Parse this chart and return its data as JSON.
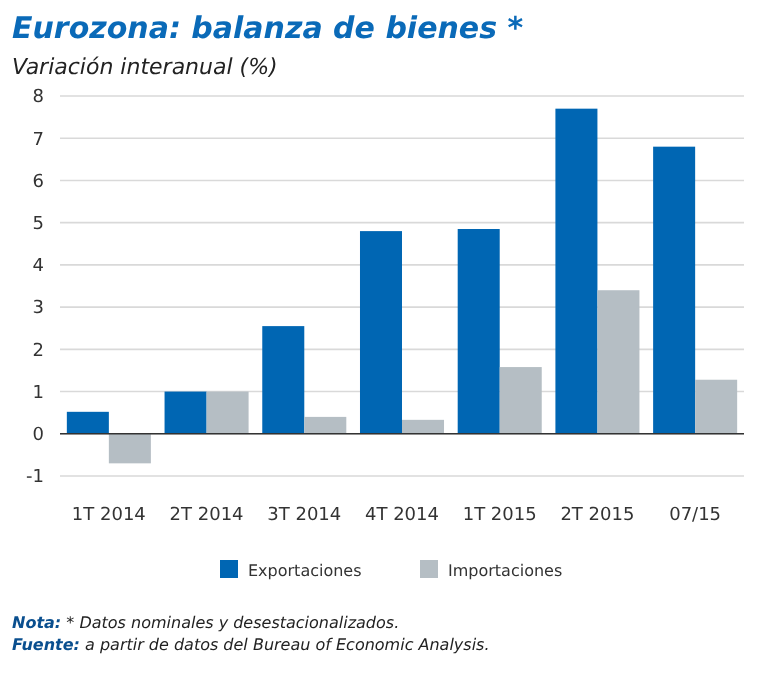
{
  "chart_data": {
    "type": "bar",
    "title": "Eurozona: balanza de bienes *",
    "subtitle": "Variación interanual (%)",
    "categories": [
      "1T 2014",
      "2T 2014",
      "3T 2014",
      "4T 2014",
      "1T 2015",
      "2T 2015",
      "07/15"
    ],
    "series": [
      {
        "name": "Exportaciones",
        "color": "#0066b3",
        "values": [
          0.52,
          1.0,
          2.55,
          4.8,
          4.85,
          7.7,
          6.8
        ]
      },
      {
        "name": "Importaciones",
        "color": "#b5bec4",
        "values": [
          -0.7,
          1.0,
          0.4,
          0.33,
          1.58,
          3.4,
          1.28
        ]
      }
    ],
    "ylim": [
      -1,
      8
    ],
    "yticks": [
      -1,
      0,
      1,
      2,
      3,
      4,
      5,
      6,
      7,
      8
    ],
    "grid": "y",
    "legend": "bottom",
    "annotations": [
      "Nota: * Datos nominales y desestacionalizados.",
      "Fuente: a partir de datos del Bureau of Economic Analysis."
    ]
  }
}
